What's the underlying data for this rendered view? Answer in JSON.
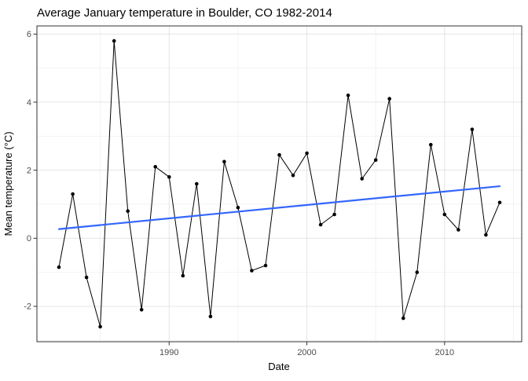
{
  "title": "Average January temperature in Boulder, CO 1982-2014",
  "chart_data": {
    "type": "line",
    "title": "Average January temperature in Boulder, CO 1982-2014",
    "xlabel": "Date",
    "ylabel": "Mean temperature (°C)",
    "x": [
      1982,
      1983,
      1984,
      1985,
      1986,
      1987,
      1988,
      1989,
      1990,
      1991,
      1992,
      1993,
      1994,
      1995,
      1996,
      1997,
      1998,
      1999,
      2000,
      2001,
      2002,
      2003,
      2004,
      2005,
      2006,
      2007,
      2008,
      2009,
      2010,
      2011,
      2012,
      2013,
      2014
    ],
    "series": [
      {
        "name": "mean_january_temperature_c",
        "values": [
          -0.85,
          1.3,
          -1.15,
          -2.6,
          5.8,
          0.8,
          -2.1,
          2.1,
          1.8,
          -1.1,
          1.6,
          -2.3,
          2.25,
          0.9,
          -0.95,
          -0.8,
          2.45,
          1.85,
          2.5,
          0.4,
          0.7,
          4.2,
          1.75,
          2.3,
          4.1,
          -2.35,
          -1.0,
          2.75,
          0.7,
          0.25,
          3.2,
          0.1,
          1.05
        ]
      }
    ],
    "trend_line": {
      "type": "linear",
      "x_start": 1982,
      "y_start": 0.27,
      "x_end": 2014,
      "y_end": 1.53
    },
    "x_ticks": [
      1990,
      2000,
      2010
    ],
    "y_ticks": [
      -2,
      0,
      2,
      4,
      6
    ],
    "x_minor": [
      1985,
      1995,
      2005,
      2015
    ],
    "y_minor": [
      -3,
      -1,
      1,
      3,
      5
    ],
    "xlim": [
      1980.4,
      2015.6
    ],
    "ylim": [
      -3.04,
      6.24
    ],
    "grid": true,
    "legend": "none",
    "colors": {
      "line": "#000000",
      "point": "#000000",
      "trend": "#3366FF",
      "grid_major": "#E4E4E4",
      "grid_minor": "#F2F2F2",
      "panel_border": "#333333",
      "tick": "#333333",
      "tick_text": "#4D4D4D",
      "title_text": "#000000",
      "axis_label_text": "#000000"
    }
  }
}
